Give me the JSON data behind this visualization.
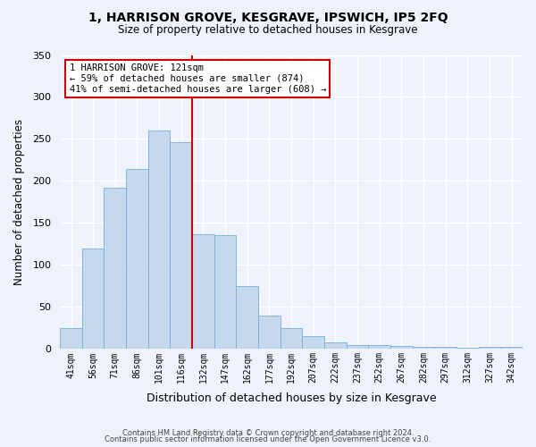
{
  "title": "1, HARRISON GROVE, KESGRAVE, IPSWICH, IP5 2FQ",
  "subtitle": "Size of property relative to detached houses in Kesgrave",
  "xlabel": "Distribution of detached houses by size in Kesgrave",
  "ylabel": "Number of detached properties",
  "bar_labels": [
    "41sqm",
    "56sqm",
    "71sqm",
    "86sqm",
    "101sqm",
    "116sqm",
    "132sqm",
    "147sqm",
    "162sqm",
    "177sqm",
    "192sqm",
    "207sqm",
    "222sqm",
    "237sqm",
    "252sqm",
    "267sqm",
    "282sqm",
    "297sqm",
    "312sqm",
    "327sqm",
    "342sqm"
  ],
  "bar_values": [
    25,
    120,
    192,
    214,
    260,
    246,
    137,
    136,
    75,
    40,
    25,
    15,
    8,
    5,
    5,
    4,
    3,
    3,
    1,
    3,
    2
  ],
  "bar_color": "#c5d8ee",
  "bar_edge_color": "#7aafd4",
  "vline_x": 6.0,
  "vline_color": "#cc0000",
  "annotation_title": "1 HARRISON GROVE: 121sqm",
  "annotation_line1": "← 59% of detached houses are smaller (874)",
  "annotation_line2": "41% of semi-detached houses are larger (608) →",
  "annotation_box_color": "#ffffff",
  "annotation_box_edge": "#cc0000",
  "ylim": [
    0,
    350
  ],
  "yticks": [
    0,
    50,
    100,
    150,
    200,
    250,
    300,
    350
  ],
  "background_color": "#eef2fa",
  "footer1": "Contains HM Land Registry data © Crown copyright and database right 2024.",
  "footer2": "Contains public sector information licensed under the Open Government Licence v3.0."
}
